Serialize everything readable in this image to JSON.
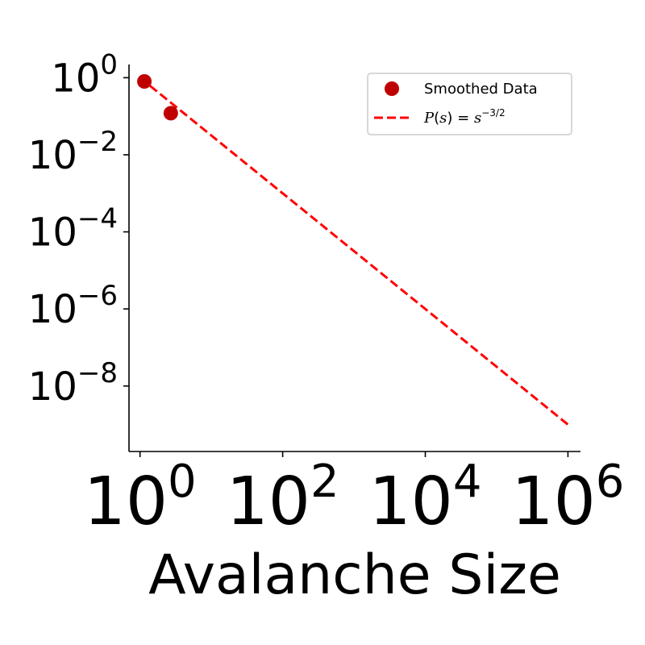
{
  "chart_data": {
    "type": "scatter",
    "xlabel": "Avalanche Size",
    "ylabel": "",
    "xscale": "log",
    "yscale": "log",
    "xlim": [
      0.7,
      1500000
    ],
    "ylim": [
      2e-10,
      2.2
    ],
    "x_ticks": [
      {
        "value": 1,
        "base": "10",
        "exp": "0"
      },
      {
        "value": 100,
        "base": "10",
        "exp": "2"
      },
      {
        "value": 10000,
        "base": "10",
        "exp": "4"
      },
      {
        "value": 1000000,
        "base": "10",
        "exp": "6"
      }
    ],
    "y_ticks": [
      {
        "value": 1,
        "base": "10",
        "exp": "0"
      },
      {
        "value": 0.01,
        "base": "10",
        "exp": "−2"
      },
      {
        "value": 0.0001,
        "base": "10",
        "exp": "−4"
      },
      {
        "value": 1e-06,
        "base": "10",
        "exp": "−6"
      },
      {
        "value": 1e-08,
        "base": "10",
        "exp": "−8"
      }
    ],
    "series": [
      {
        "name": "Smoothed Data",
        "kind": "scatter",
        "color": "#c00000",
        "x": [
          1.15,
          2.7
        ],
        "y": [
          0.8,
          0.12
        ]
      },
      {
        "name": "P(s) = s",
        "name_exponent": "−3/2",
        "kind": "line",
        "style": "dashed",
        "color": "#ff0000",
        "x": [
          1,
          1000000
        ],
        "y": [
          1,
          1e-09
        ]
      }
    ],
    "legend": {
      "position": "top-right"
    },
    "grid": false
  }
}
